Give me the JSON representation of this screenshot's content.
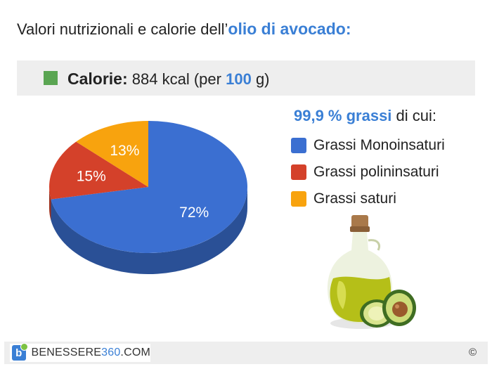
{
  "header": {
    "title_prefix": "Valori nutrizionali e calorie dell’",
    "title_highlight": "olio di avocado",
    "title_suffix": ":"
  },
  "calories": {
    "label": "Calorie:",
    "value": "884 kcal",
    "per_prefix": "(per",
    "per_amount": "100",
    "per_suffix": "g)",
    "square_color": "#5aa552"
  },
  "chart_data": {
    "type": "pie",
    "style": "3d",
    "title": "",
    "slices": [
      {
        "label": "Grassi Monoinsaturi",
        "value": 72,
        "display": "72%",
        "color": "#3b6fd1"
      },
      {
        "label": "Grassi polininsaturi",
        "value": 15,
        "display": "15%",
        "color": "#d4412a"
      },
      {
        "label": "Grassi saturi",
        "value": 13,
        "display": "13%",
        "color": "#f8a30e"
      }
    ],
    "legend_placement": "right"
  },
  "legend": {
    "head_highlight": "99,9 % grassi",
    "head_suffix": " di cui:"
  },
  "footer": {
    "brand_part1": "BENESSERE",
    "brand_part2": "360",
    "brand_part3": ".COM",
    "logo_letter": "b",
    "copyright": "©"
  },
  "colors": {
    "accent": "#3a7fd5",
    "bar_bg": "#eeeeee"
  }
}
